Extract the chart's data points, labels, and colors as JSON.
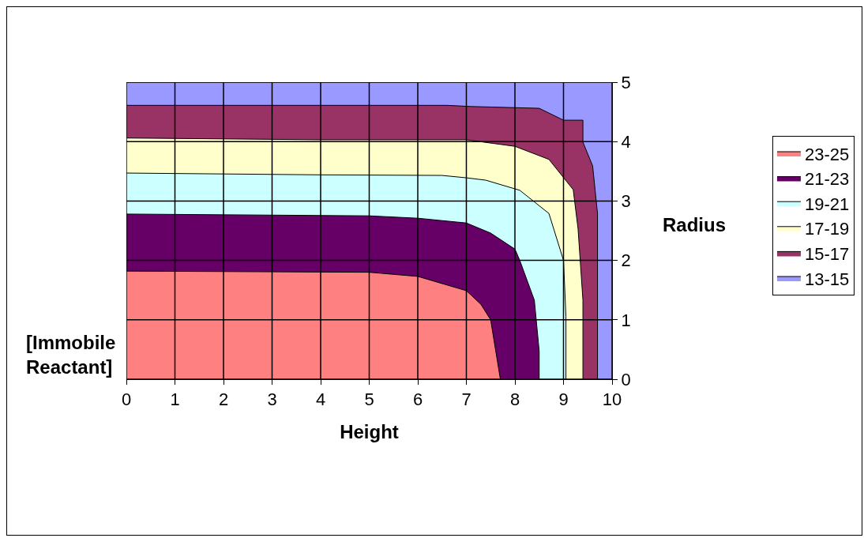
{
  "chart_data": {
    "type": "area",
    "xlabel": "Height",
    "ylabel": "Radius",
    "annotations": [
      "[Immobile\nReactant]"
    ],
    "series": [
      {
        "name": "23-25",
        "color": "#ff8080",
        "x": [
          0,
          5,
          6,
          7,
          7.3,
          7.5,
          7.7
        ],
        "values": [
          1.82,
          1.8,
          1.73,
          1.49,
          1.26,
          1.0,
          0
        ]
      },
      {
        "name": "21-23",
        "color": "#660066",
        "x": [
          0,
          5,
          6,
          7,
          7.5,
          8,
          8.1,
          8.4,
          8.5,
          8.5
        ],
        "values": [
          2.78,
          2.75,
          2.71,
          2.63,
          2.46,
          2.19,
          2.0,
          1.33,
          0.47,
          0
        ]
      },
      {
        "name": "19-21",
        "color": "#ccffff",
        "x": [
          0,
          4,
          6.5,
          7,
          7.4,
          8.1,
          8.7,
          9,
          9.05,
          9.05
        ],
        "values": [
          3.47,
          3.44,
          3.43,
          3.39,
          3.35,
          3.18,
          2.79,
          2.0,
          1.06,
          0
        ]
      },
      {
        "name": "17-19",
        "color": "#ffffcc",
        "x": [
          0,
          4,
          7,
          8,
          8.7,
          9.2,
          9.3,
          9.4,
          9.4
        ],
        "values": [
          4.06,
          4.03,
          4.03,
          3.92,
          3.7,
          3.19,
          2.53,
          1.33,
          0
        ]
      },
      {
        "name": "15-17",
        "color": "#993366",
        "x": [
          0,
          6.6,
          7.1,
          8.5,
          9,
          9.4,
          9.4,
          9.6,
          9.7,
          9.7
        ],
        "values": [
          4.61,
          4.61,
          4.59,
          4.56,
          4.36,
          4.36,
          3.99,
          3.59,
          2.79,
          0
        ]
      },
      {
        "name": "13-15",
        "color": "#9999ff",
        "x": [
          0,
          10
        ],
        "values": [
          5,
          5
        ]
      }
    ],
    "xlim": [
      0,
      10
    ],
    "xticks": [
      0,
      1,
      2,
      3,
      4,
      5,
      6,
      7,
      8,
      9,
      10
    ],
    "ylim": [
      0,
      5
    ],
    "yticks": [
      0,
      1,
      2,
      3,
      4,
      5
    ],
    "grid": true,
    "legend": "right",
    "marker": "none",
    "line_style": "solid"
  }
}
